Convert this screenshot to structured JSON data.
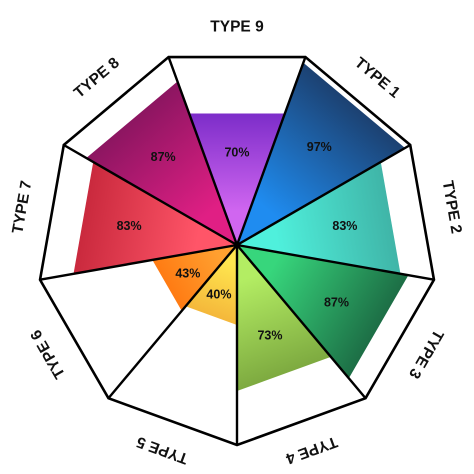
{
  "chart_data": {
    "type": "radar-sector",
    "title": "",
    "categories": [
      "TYPE 1",
      "TYPE 2",
      "TYPE 3",
      "TYPE 4",
      "TYPE 5",
      "TYPE 6",
      "TYPE 7",
      "TYPE 8",
      "TYPE 9"
    ],
    "values": [
      97,
      83,
      87,
      73,
      40,
      43,
      83,
      87,
      70
    ],
    "value_labels": [
      "97%",
      "83%",
      "87%",
      "73%",
      "40%",
      "43%",
      "83%",
      "87%",
      "70%"
    ],
    "ylim": [
      0,
      100
    ],
    "grid": false,
    "colors": {
      "outline": "#000000",
      "TYPE 1": [
        "#1f8cf0",
        "#1c3f6e"
      ],
      "TYPE 2": [
        "#4ff0dc",
        "#3fb3a6"
      ],
      "TYPE 3": [
        "#37d67c",
        "#1c6b44"
      ],
      "TYPE 4": [
        "#b3ed63",
        "#7ca83f"
      ],
      "TYPE 5": [
        "#ffe64f",
        "#f4b63a"
      ],
      "TYPE 6": [
        "#ffa030",
        "#ff7a12"
      ],
      "TYPE 7": [
        "#ff5568",
        "#c8283c"
      ],
      "TYPE 8": [
        "#e01f84",
        "#8a1560"
      ],
      "TYPE 9": [
        "#d066f0",
        "#7a2bc8"
      ]
    }
  }
}
